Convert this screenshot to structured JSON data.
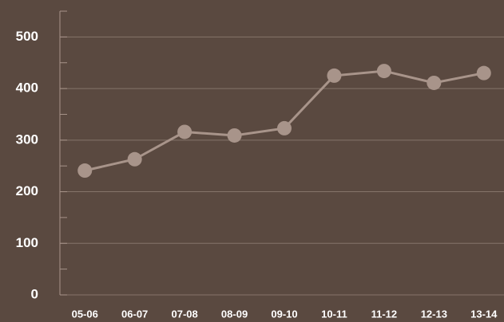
{
  "chart_data": {
    "type": "line",
    "categories": [
      "05-06",
      "06-07",
      "07-08",
      "08-09",
      "09-10",
      "10-11",
      "11-12",
      "12-13",
      "13-14"
    ],
    "values": [
      241,
      263,
      316,
      309,
      323,
      425,
      434,
      411,
      430
    ],
    "color": "#a8948a",
    "ylim": [
      0,
      550
    ],
    "yticks": [
      0,
      100,
      200,
      300,
      400,
      500
    ],
    "minor_yticks": [
      50,
      150,
      250,
      350,
      450,
      550
    ],
    "grid": true
  }
}
